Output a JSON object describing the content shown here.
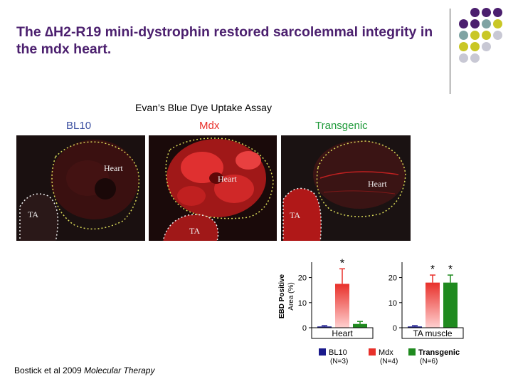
{
  "slide": {
    "title": "The ∆H2-R19 mini-dystrophin restored sarcolemmal integrity in the mdx heart.",
    "assay_title": "Evan’s Blue Dye Uptake Assay",
    "citation_authors": "Bostick et al 2009 ",
    "citation_journal": "Molecular Therapy"
  },
  "panels": [
    {
      "label": "BL10",
      "label_color": "#3b4fa0",
      "heart_label": "Heart",
      "ta_label": "TA"
    },
    {
      "label": "Mdx",
      "label_color": "#e8302a",
      "heart_label": "Heart",
      "ta_label": "TA"
    },
    {
      "label": "Transgenic",
      "label_color": "#1f9a3a",
      "heart_label": "Heart",
      "ta_label": "TA"
    }
  ],
  "colors": {
    "title": "#4b1f6e",
    "bl10": "#1a1a8c",
    "mdx": "#e8302a",
    "transgenic": "#1f8a1f",
    "dot_purple": "#4b1f6e",
    "dot_teal": "#7fa3a3",
    "dot_yellow": "#c9c726",
    "dot_gray": "#c8c8d4"
  },
  "chart_data": [
    {
      "type": "bar",
      "title": "",
      "xlabel": "Heart",
      "ylabel": "EBD Positive Area (%)",
      "ylim": [
        0,
        25
      ],
      "yticks": [
        0,
        10,
        20
      ],
      "categories": [
        "BL10",
        "Mdx",
        "Transgenic"
      ],
      "values": [
        0.5,
        17.5,
        1.5
      ],
      "errors": [
        0.3,
        6,
        1
      ],
      "significance": [
        "",
        "*",
        ""
      ]
    },
    {
      "type": "bar",
      "title": "",
      "xlabel": "TA muscle",
      "ylabel": "",
      "ylim": [
        0,
        25
      ],
      "yticks": [
        0,
        10,
        20
      ],
      "categories": [
        "BL10",
        "Mdx",
        "Transgenic"
      ],
      "values": [
        0.5,
        18,
        18
      ],
      "errors": [
        0.3,
        3,
        3
      ],
      "significance": [
        "",
        "*",
        "*"
      ]
    }
  ],
  "legend": [
    {
      "label": "BL10",
      "n": "(N=3)",
      "color": "#1a1a8c"
    },
    {
      "label": "Mdx",
      "n": "(N=4)",
      "color": "#e8302a"
    },
    {
      "label": "Transgenic",
      "n": "(N=6)",
      "color": "#1f8a1f"
    }
  ]
}
